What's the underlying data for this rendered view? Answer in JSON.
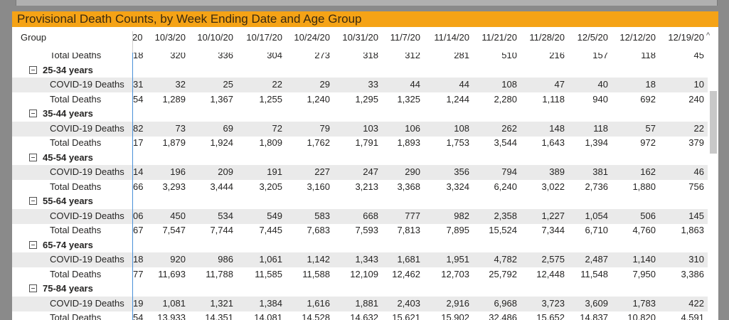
{
  "title": "Provisional Death Counts, by Week Ending Date and Age Group",
  "header": {
    "group_label": "Group",
    "cut_column": "20",
    "columns": [
      "10/3/20",
      "10/10/20",
      "10/17/20",
      "10/24/20",
      "10/31/20",
      "11/7/20",
      "11/14/20",
      "11/21/20",
      "11/28/20",
      "12/5/20",
      "12/12/20",
      "12/19/20"
    ],
    "scroll_up": "^"
  },
  "partial_top_row": {
    "label": "Total Deaths",
    "cut": "18",
    "values": [
      "320",
      "336",
      "304",
      "273",
      "318",
      "312",
      "281",
      "510",
      "216",
      "157",
      "118",
      "45"
    ]
  },
  "groups": [
    {
      "name": "25-34 years",
      "rows": [
        {
          "label": "COVID-19 Deaths",
          "cut": "31",
          "values": [
            "32",
            "25",
            "22",
            "29",
            "33",
            "44",
            "44",
            "108",
            "47",
            "40",
            "18",
            "10"
          ]
        },
        {
          "label": "Total Deaths",
          "cut": "54",
          "values": [
            "1,289",
            "1,367",
            "1,255",
            "1,240",
            "1,295",
            "1,325",
            "1,244",
            "2,280",
            "1,118",
            "940",
            "692",
            "240"
          ]
        }
      ]
    },
    {
      "name": "35-44 years",
      "rows": [
        {
          "label": "COVID-19 Deaths",
          "cut": "82",
          "values": [
            "73",
            "69",
            "72",
            "79",
            "103",
            "106",
            "108",
            "262",
            "148",
            "118",
            "57",
            "22"
          ]
        },
        {
          "label": "Total Deaths",
          "cut": "17",
          "values": [
            "1,879",
            "1,924",
            "1,809",
            "1,762",
            "1,791",
            "1,893",
            "1,753",
            "3,544",
            "1,643",
            "1,394",
            "972",
            "379"
          ]
        }
      ]
    },
    {
      "name": "45-54 years",
      "rows": [
        {
          "label": "COVID-19 Deaths",
          "cut": "14",
          "values": [
            "196",
            "209",
            "191",
            "227",
            "247",
            "290",
            "356",
            "794",
            "389",
            "381",
            "162",
            "46"
          ]
        },
        {
          "label": "Total Deaths",
          "cut": "66",
          "values": [
            "3,293",
            "3,444",
            "3,205",
            "3,160",
            "3,213",
            "3,368",
            "3,324",
            "6,240",
            "3,022",
            "2,736",
            "1,880",
            "756"
          ]
        }
      ]
    },
    {
      "name": "55-64 years",
      "rows": [
        {
          "label": "COVID-19 Deaths",
          "cut": "06",
          "values": [
            "450",
            "534",
            "549",
            "583",
            "668",
            "777",
            "982",
            "2,358",
            "1,227",
            "1,054",
            "506",
            "145"
          ]
        },
        {
          "label": "Total Deaths",
          "cut": "67",
          "values": [
            "7,547",
            "7,744",
            "7,445",
            "7,683",
            "7,593",
            "7,813",
            "7,895",
            "15,524",
            "7,344",
            "6,710",
            "4,760",
            "1,863"
          ]
        }
      ]
    },
    {
      "name": "65-74 years",
      "rows": [
        {
          "label": "COVID-19 Deaths",
          "cut": "18",
          "values": [
            "920",
            "986",
            "1,061",
            "1,142",
            "1,343",
            "1,681",
            "1,951",
            "4,782",
            "2,575",
            "2,487",
            "1,140",
            "310"
          ]
        },
        {
          "label": "Total Deaths",
          "cut": "77",
          "values": [
            "11,693",
            "11,788",
            "11,585",
            "11,588",
            "12,109",
            "12,462",
            "12,703",
            "25,792",
            "12,448",
            "11,548",
            "7,950",
            "3,386"
          ]
        }
      ]
    },
    {
      "name": "75-84 years",
      "rows": [
        {
          "label": "COVID-19 Deaths",
          "cut": "19",
          "values": [
            "1,081",
            "1,321",
            "1,384",
            "1,616",
            "1,881",
            "2,403",
            "2,916",
            "6,968",
            "3,723",
            "3,609",
            "1,783",
            "422"
          ]
        },
        {
          "label": "Total Deaths",
          "cut": "54",
          "values": [
            "13,933",
            "14,351",
            "14,081",
            "14,528",
            "14,632",
            "15,621",
            "15,902",
            "32,486",
            "15,652",
            "14,837",
            "10,820",
            "4,591"
          ]
        }
      ]
    }
  ],
  "colors": {
    "title_bar": "#f5a316",
    "row_shade": "#eaeaea",
    "divider": "#4a90d9"
  }
}
